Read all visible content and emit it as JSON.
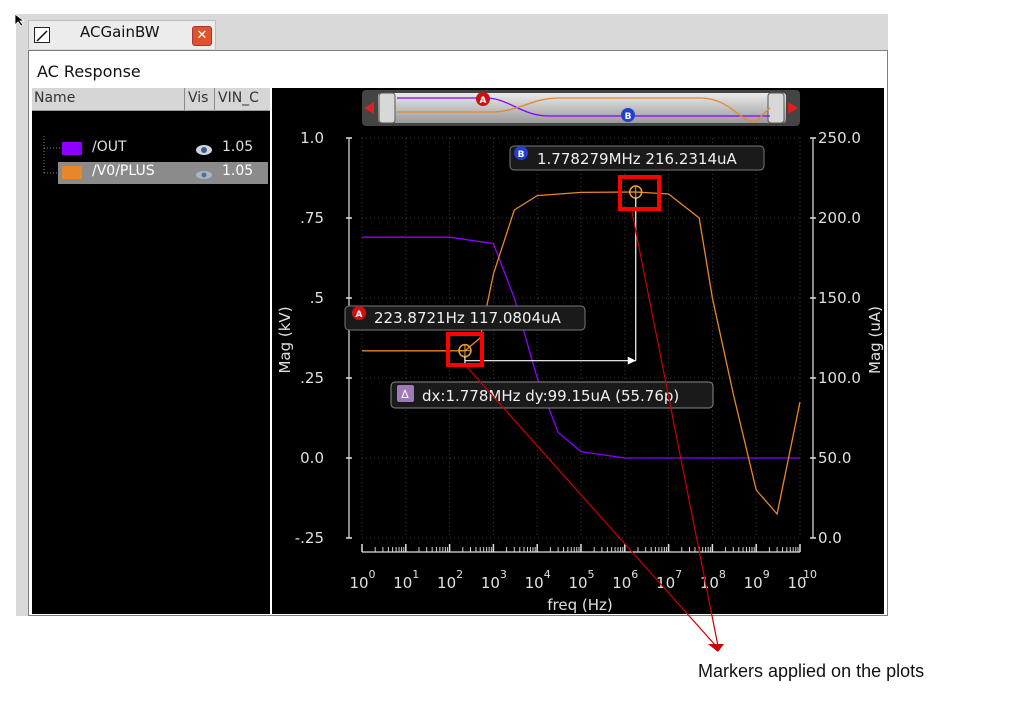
{
  "window": {
    "tab_title": "ACGainBW",
    "panel_title": "AC Response"
  },
  "sidebar": {
    "columns": [
      "Name",
      "Vis",
      "VIN_C"
    ],
    "signals": [
      {
        "name": "/OUT",
        "value": "1.05",
        "color": "#8b00ff",
        "visible_icon": "eye-icon",
        "selected": false
      },
      {
        "name": "/V0/PLUS",
        "value": "1.05",
        "color": "#e8872a",
        "visible_icon": "eye-icon",
        "selected": true
      }
    ]
  },
  "chart_data": {
    "type": "line",
    "x_scale": "log",
    "xlabel": "freq (Hz)",
    "ylabel_left": "Mag (kV)",
    "ylabel_right": "Mag (uA)",
    "x_ticks": [
      "10^0",
      "10^1",
      "10^2",
      "10^3",
      "10^4",
      "10^5",
      "10^6",
      "10^7",
      "10^8",
      "10^9",
      "10^10"
    ],
    "x_range_hz": [
      1,
      10000000000
    ],
    "y_left_ticks": [
      "1.0",
      ".75",
      ".5",
      ".25",
      "0.0",
      "-.25"
    ],
    "y_left_range": [
      -0.25,
      1.0
    ],
    "y_right_ticks": [
      "250.0",
      "200.0",
      "150.0",
      "100.0",
      "50.0",
      "0.0"
    ],
    "y_right_range": [
      0,
      250
    ],
    "grid": true,
    "series": [
      {
        "name": "/OUT",
        "axis": "left",
        "color": "#8b00ff",
        "x": [
          1,
          10,
          100,
          1000,
          3000,
          10000,
          30000,
          100000,
          1000000,
          10000000,
          100000000,
          1000000000,
          10000000000
        ],
        "y": [
          0.69,
          0.69,
          0.69,
          0.67,
          0.5,
          0.25,
          0.08,
          0.02,
          0.0,
          0.0,
          0.0,
          0.0,
          0.0
        ]
      },
      {
        "name": "/V0/PLUS",
        "axis": "right",
        "color": "#e8872a",
        "x": [
          1,
          10,
          100,
          223.8721,
          500,
          1000,
          3000,
          10000,
          100000,
          1778279,
          10000000,
          50000000,
          100000000,
          300000000,
          1000000000,
          3000000000,
          10000000000
        ],
        "y": [
          117,
          117,
          117,
          117.08,
          125,
          165,
          205,
          214,
          216,
          216.23,
          215,
          200,
          150,
          90,
          30,
          15,
          85
        ]
      }
    ]
  },
  "markers": {
    "a": {
      "letter": "A",
      "label": "223.8721Hz 117.0804uA",
      "x_hz": 223.8721,
      "y_uA": 117.0804
    },
    "b": {
      "letter": "B",
      "label": "1.778279MHz 216.2314uA",
      "x_hz": 1778279,
      "y_uA": 216.2314
    },
    "delta": {
      "symbol": "Δ",
      "label": "dx:1.778MHz dy:99.15uA (55.76p)"
    }
  },
  "overview_markers": [
    "A",
    "B"
  ],
  "annotation": "Markers applied on the plots",
  "colors": {
    "highlight_box": "#ff0000",
    "plot_bg": "#000000",
    "annotation_line": "#cc0000"
  }
}
